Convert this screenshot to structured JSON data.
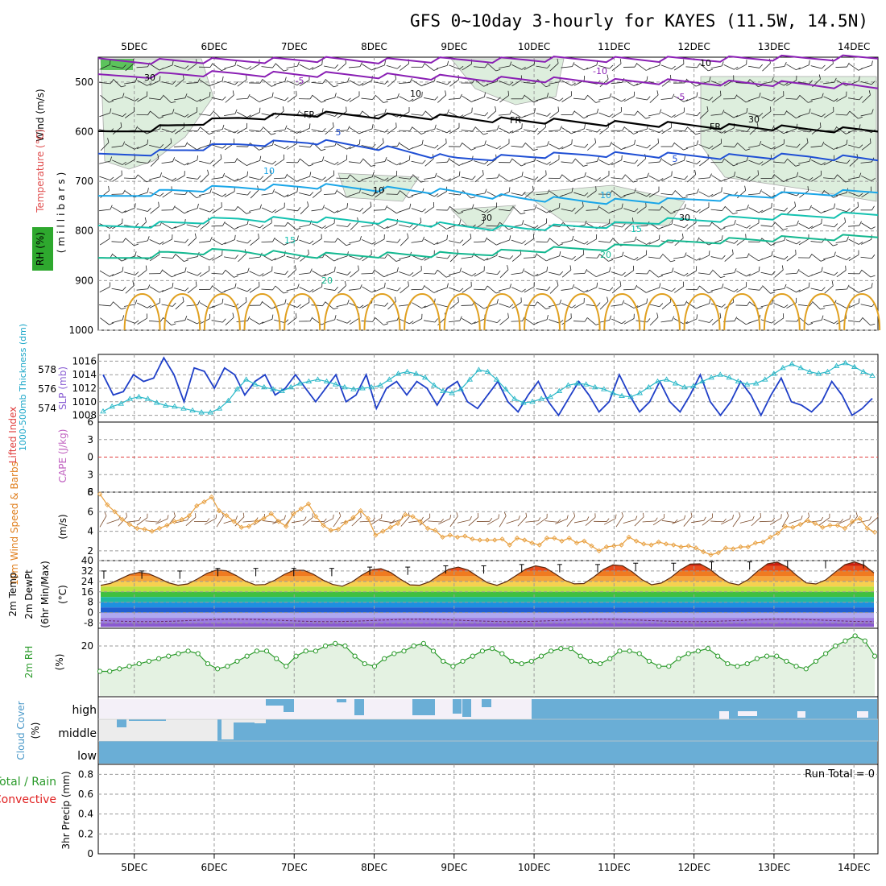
{
  "title": "GFS 0~10day 3-hourly for KAYES (11.5W, 14.5N)",
  "colors": {
    "purple": "#8a1fb4",
    "black": "#000000",
    "blue": "#1f4fd4",
    "cyan": "#1aa6e8",
    "teal": "#14c2b0",
    "green_c": "#14b890",
    "orange": "#e0a020",
    "magenta": "#c0208c",
    "rh_fill": "#d8ecd8",
    "cloud": "#6aaed6",
    "slp_line": "#1f3fc8",
    "thick_line": "#2ab8c8",
    "wind_line": "#e8a040"
  },
  "chart_data": {
    "type": "meteogram",
    "x_axis": {
      "labels": [
        "5DEC",
        "6DEC",
        "7DEC",
        "8DEC",
        "9DEC",
        "10DEC",
        "11DEC",
        "12DEC",
        "13DEC",
        "14DEC"
      ],
      "start_day": 4.55,
      "end_day": 14.3
    },
    "panels": [
      {
        "id": "upper_air",
        "ylabels": [
          "RH (%)",
          "Temperature (°C)",
          "Wind (m/s)"
        ],
        "yunit": "(millibars)",
        "yticks": [
          "500",
          "600",
          "700",
          "800",
          "900",
          "1000"
        ],
        "ylim": [
          450,
          1000
        ],
        "temp_contours": [
          {
            "label": "-10",
            "color": "purple",
            "p": [
              458,
              458,
              457,
              455,
              457,
              456,
              455,
              454,
              455,
              453,
              452,
              450
            ]
          },
          {
            "label": "-5",
            "color": "purple",
            "p": [
              490,
              485,
              483,
              485,
              487,
              492,
              495,
              498,
              500,
              502,
              505,
              510
            ]
          },
          {
            "label": "FR",
            "color": "black",
            "p": [
              605,
              590,
              572,
              565,
              568,
              572,
              578,
              582,
              586,
              590,
              595,
              597
            ]
          },
          {
            "label": "5",
            "color": "blue",
            "p": [
              650,
              640,
              625,
              620,
              632,
              655,
              650,
              645,
              648,
              650,
              650,
              655
            ]
          },
          {
            "label": "10",
            "color": "cyan",
            "p": [
              735,
              720,
              712,
              710,
              715,
              722,
              735,
              740,
              740,
              732,
              725,
              720
            ]
          },
          {
            "label": "15",
            "color": "teal",
            "p": [
              795,
              785,
              775,
              778,
              780,
              790,
              795,
              790,
              780,
              775,
              770,
              765
            ]
          },
          {
            "label": "20",
            "color": "green_c",
            "p": [
              860,
              845,
              840,
              850,
              848,
              848,
              840,
              835,
              825,
              818,
              815,
              810
            ]
          }
        ],
        "contour_labels": [
          "-10",
          "-5",
          "-5",
          "FR",
          "FR",
          "FR",
          "5",
          "5",
          "10",
          "10",
          "15",
          "15",
          "20",
          "20",
          "10",
          "10",
          "30",
          "30",
          "30",
          "10",
          "30"
        ]
      },
      {
        "id": "slp_thickness",
        "ylabels": [
          "1000-500mb Thickness (dm)",
          "SLP (mb)"
        ],
        "yticks_left": [
          "578",
          "576",
          "574"
        ],
        "yticks_right": [
          "1016",
          "1014",
          "1012",
          "1010",
          "1008"
        ],
        "slp_ylim": [
          1007,
          1017
        ],
        "slp_mb": [
          1014,
          1011,
          1011.5,
          1014,
          1013,
          1013.5,
          1016.5,
          1014,
          1010,
          1015,
          1014.5,
          1012,
          1015,
          1014,
          1011,
          1013,
          1014,
          1011,
          1012,
          1014,
          1012,
          1010,
          1012,
          1014,
          1010,
          1011,
          1014,
          1009,
          1012,
          1013,
          1011,
          1013,
          1012,
          1009.5,
          1012,
          1013,
          1010,
          1009,
          1011,
          1013,
          1010,
          1008.5,
          1011,
          1013,
          1010,
          1008,
          1010.5,
          1013,
          1011,
          1008.5,
          1010,
          1014,
          1011,
          1008.5,
          1010,
          1013,
          1010,
          1008.5,
          1011,
          1014,
          1010,
          1008,
          1010,
          1013,
          1011,
          1008,
          1011,
          1013.5,
          1010,
          1009.5,
          1008.5,
          1010,
          1013,
          1011,
          1008,
          1009,
          1010.5
        ],
        "thick_ylim": [
          572.6,
          579.6
        ],
        "thickness_dm": [
          573.7,
          574.2,
          574.5,
          575.0,
          575.2,
          575.0,
          574.6,
          574.3,
          574.2,
          574.0,
          573.8,
          573.6,
          573.6,
          574.0,
          574.8,
          576.0,
          577.0,
          576.5,
          576.2,
          576.0,
          575.8,
          576.2,
          576.6,
          576.8,
          577.0,
          576.8,
          576.5,
          576.2,
          576.0,
          576.1,
          576.2,
          576.4,
          577.0,
          577.6,
          577.8,
          577.6,
          577.2,
          576.4,
          575.8,
          575.6,
          576.0,
          577.0,
          578.0,
          577.8,
          577.0,
          576.0,
          575.0,
          574.6,
          574.7,
          575.0,
          575.2,
          575.8,
          576.4,
          576.6,
          576.5,
          576.2,
          576.0,
          575.6,
          575.3,
          575.2,
          575.6,
          576.2,
          576.8,
          577.0,
          576.6,
          576.2,
          576.3,
          576.8,
          577.2,
          577.5,
          577.2,
          576.8,
          576.5,
          576.6,
          577.0,
          577.6,
          578.2,
          578.6,
          578.2,
          577.8,
          577.6,
          577.8,
          578.4,
          578.7,
          578.3,
          577.8,
          577.4
        ]
      },
      {
        "id": "cape_li",
        "ylabels": [
          "Lifted Index",
          "CAPE (J/kg)"
        ],
        "yticks": [
          "6",
          "3",
          "0",
          "3",
          "6"
        ],
        "ylim": [
          -6,
          6
        ]
      },
      {
        "id": "wind10m",
        "ylabels": [
          "10m Wind Speed & Barbs",
          "(m/s)"
        ],
        "yticks": [
          "8",
          "6",
          "4",
          "2"
        ],
        "ylim": [
          1,
          8
        ],
        "speed_ms": [
          7.8,
          6.7,
          6.0,
          5.2,
          4.7,
          4.3,
          4.2,
          4.0,
          4.3,
          4.6,
          5.0,
          5.2,
          5.6,
          6.6,
          7.0,
          7.5,
          6.1,
          5.6,
          5.0,
          4.4,
          4.5,
          5.0,
          5.3,
          5.8,
          5.0,
          4.5,
          5.8,
          6.3,
          6.8,
          5.5,
          4.6,
          4.1,
          4.2,
          4.9,
          5.4,
          6.1,
          5.3,
          3.6,
          4.0,
          4.4,
          4.8,
          5.7,
          5.5,
          5.0,
          4.3,
          4.1,
          3.4,
          3.6,
          3.4,
          3.5,
          3.2,
          3.1,
          3.1,
          3.1,
          3.2,
          2.6,
          3.3,
          3.1,
          2.8,
          2.6,
          3.3,
          3.3,
          3.0,
          3.3,
          2.8,
          3.0,
          2.5,
          2.0,
          2.4,
          2.5,
          2.6,
          3.4,
          3.0,
          2.7,
          2.6,
          2.9,
          2.7,
          2.6,
          2.4,
          2.5,
          2.3,
          1.9,
          1.6,
          1.8,
          2.3,
          2.2,
          2.4,
          2.4,
          2.8,
          2.9,
          3.4,
          3.8,
          4.5,
          4.4,
          4.7,
          5.1,
          4.8,
          4.4,
          4.6,
          4.6,
          4.3,
          5.0,
          5.3,
          4.3,
          3.9
        ]
      },
      {
        "id": "temp2m",
        "ylabels": [
          "2m Temp",
          "2m DewPt",
          "(6hr Min/Max)",
          "(°C)"
        ],
        "yticks": [
          "40",
          "32",
          "24",
          "16",
          "8",
          "0",
          "-8"
        ],
        "ylim": [
          -12,
          40
        ],
        "temp_max_c": [
          31,
          33,
          33,
          34,
          35,
          36,
          37,
          38,
          39,
          39
        ],
        "temp_min_c": [
          21,
          21,
          21,
          20,
          21,
          22,
          21,
          22,
          21,
          22
        ]
      },
      {
        "id": "rh2m",
        "ylabels": [
          "2m RH",
          "(%)"
        ],
        "yticks": [
          "20"
        ],
        "ylim": [
          0,
          27
        ],
        "rh_pct": [
          10,
          10,
          11,
          12,
          13,
          14,
          15,
          16,
          17,
          18,
          17,
          13,
          11,
          12,
          14,
          16,
          18,
          18,
          15,
          12,
          16,
          18,
          18,
          20,
          21,
          20,
          16,
          13,
          12,
          15,
          17,
          18,
          20,
          21,
          18,
          14,
          12,
          14,
          16,
          18,
          19,
          17,
          14,
          13,
          14,
          16,
          18,
          19,
          19,
          16,
          14,
          13,
          15,
          18,
          18,
          17,
          14,
          12,
          12,
          15,
          17,
          18,
          19,
          16,
          13,
          12,
          13,
          15,
          16,
          16,
          14,
          12,
          11,
          14,
          17,
          20,
          22,
          24,
          22,
          16
        ]
      },
      {
        "id": "cloud",
        "ylabels": [
          "Cloud Cover",
          "(%)"
        ],
        "levels": [
          "high",
          "middle",
          "low"
        ]
      },
      {
        "id": "precip",
        "ylabels": [
          "Total / Rain",
          "Convective",
          "3hr Precip (mm)"
        ],
        "yticks": [
          "0.8",
          "0.6",
          "0.4",
          "0.2",
          "0"
        ],
        "ylim": [
          0,
          0.9
        ],
        "run_total_label": "Run Total = 0"
      }
    ]
  }
}
